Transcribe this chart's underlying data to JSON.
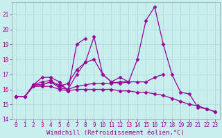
{
  "background_color": "#c8eeee",
  "grid_color": "#b0dddd",
  "line_color": "#990099",
  "marker": "D",
  "markersize": 2.5,
  "linewidth": 0.9,
  "xlim": [
    -0.5,
    23.5
  ],
  "ylim": [
    14,
    21.8
  ],
  "yticks": [
    14,
    15,
    16,
    17,
    18,
    19,
    20,
    21
  ],
  "xticks": [
    0,
    1,
    2,
    3,
    4,
    5,
    6,
    7,
    8,
    9,
    10,
    11,
    12,
    13,
    14,
    15,
    16,
    17,
    18,
    19,
    20,
    21,
    22,
    23
  ],
  "xlabel": "Windchill (Refroidissement éolien,°C)",
  "xlabel_fontsize": 6.5,
  "tick_fontsize": 5.5,
  "lines": [
    {
      "x": [
        0,
        1,
        2,
        3,
        4,
        5,
        6,
        7,
        8,
        9,
        10,
        11,
        12,
        13,
        14,
        15,
        16,
        17,
        18,
        19,
        20,
        21,
        22,
        23
      ],
      "y": [
        15.5,
        15.5,
        16.3,
        16.3,
        16.5,
        16.3,
        16.0,
        17.0,
        17.8,
        19.5,
        17.0,
        16.5,
        16.8,
        16.5,
        18.0,
        20.6,
        21.5,
        19.0,
        17.0,
        15.8,
        15.7,
        14.8,
        14.7,
        14.5
      ]
    },
    {
      "x": [
        0,
        1,
        2,
        3,
        4,
        5,
        6,
        7,
        8
      ],
      "y": [
        15.5,
        15.5,
        16.3,
        16.8,
        16.8,
        16.5,
        15.9,
        19.0,
        19.4
      ]
    },
    {
      "x": [
        0,
        1,
        2,
        3,
        4,
        5,
        6,
        7,
        8,
        9,
        10,
        11,
        12,
        13
      ],
      "y": [
        15.5,
        15.5,
        16.3,
        16.5,
        16.6,
        16.2,
        16.4,
        17.3,
        17.8,
        18.0,
        17.0,
        16.5,
        16.4,
        16.5
      ]
    },
    {
      "x": [
        0,
        1,
        2,
        3,
        4,
        5,
        6,
        7,
        8,
        9,
        10,
        11,
        12,
        13,
        14,
        15,
        16,
        17
      ],
      "y": [
        15.5,
        15.5,
        16.3,
        16.3,
        16.5,
        16.1,
        16.0,
        16.2,
        16.3,
        16.4,
        16.4,
        16.4,
        16.5,
        16.5,
        16.5,
        16.5,
        16.8,
        17.0
      ]
    },
    {
      "x": [
        0,
        1,
        2,
        3,
        4,
        5,
        6,
        7,
        8,
        9,
        10,
        11,
        12,
        13,
        14,
        15,
        16,
        17,
        18,
        19,
        20,
        21,
        22,
        23
      ],
      "y": [
        15.5,
        15.5,
        16.2,
        16.2,
        16.2,
        16.0,
        15.9,
        16.0,
        16.0,
        16.0,
        16.0,
        16.0,
        15.9,
        15.9,
        15.8,
        15.8,
        15.7,
        15.6,
        15.4,
        15.2,
        15.0,
        14.9,
        14.7,
        14.5
      ]
    }
  ]
}
